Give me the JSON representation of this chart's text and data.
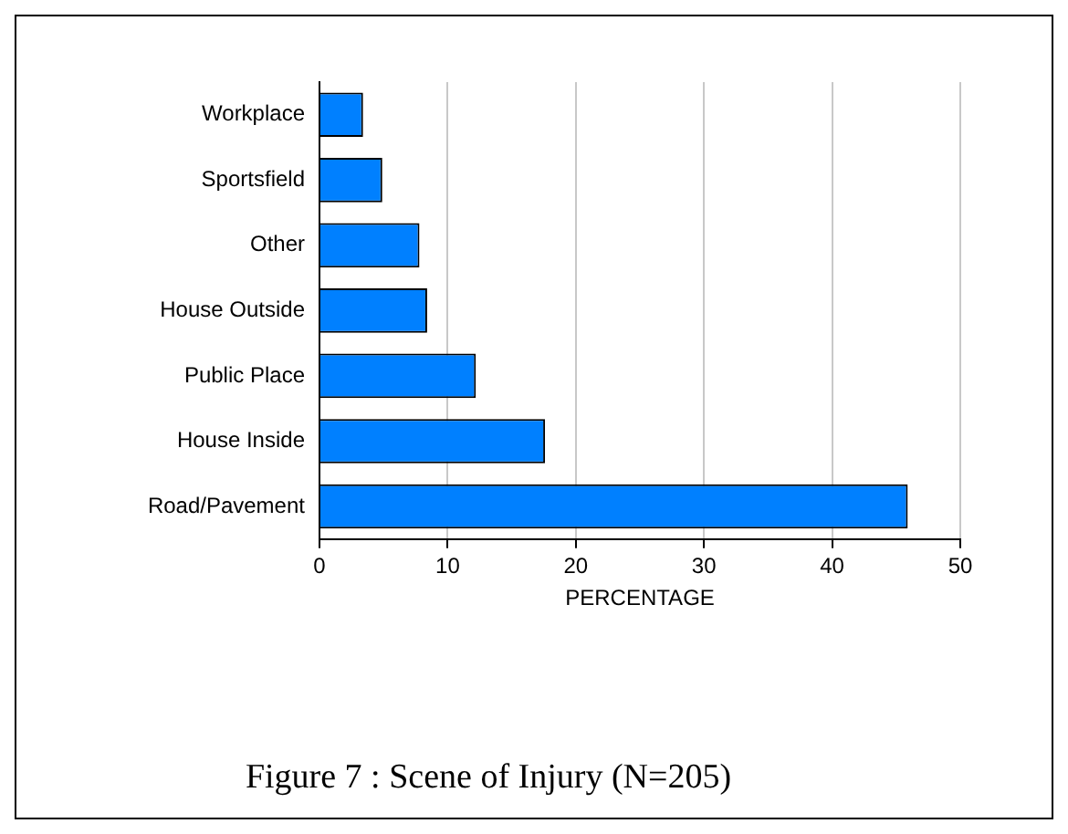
{
  "chart_data": {
    "type": "bar",
    "orientation": "horizontal",
    "title": "Figure 7 : Scene of Injury (N=205)",
    "xlabel": "PERCENTAGE",
    "categories": [
      "Workplace",
      "Sportsfield",
      "Other",
      "House Outside",
      "Public Place",
      "House Inside",
      "Road/Pavement"
    ],
    "values": [
      3.4,
      4.9,
      7.8,
      8.4,
      12.2,
      17.6,
      45.9
    ],
    "color": "#0080ff",
    "xlim": [
      0,
      50
    ],
    "xticks": [
      0,
      10,
      20,
      30,
      40,
      50
    ],
    "grid": "x"
  }
}
